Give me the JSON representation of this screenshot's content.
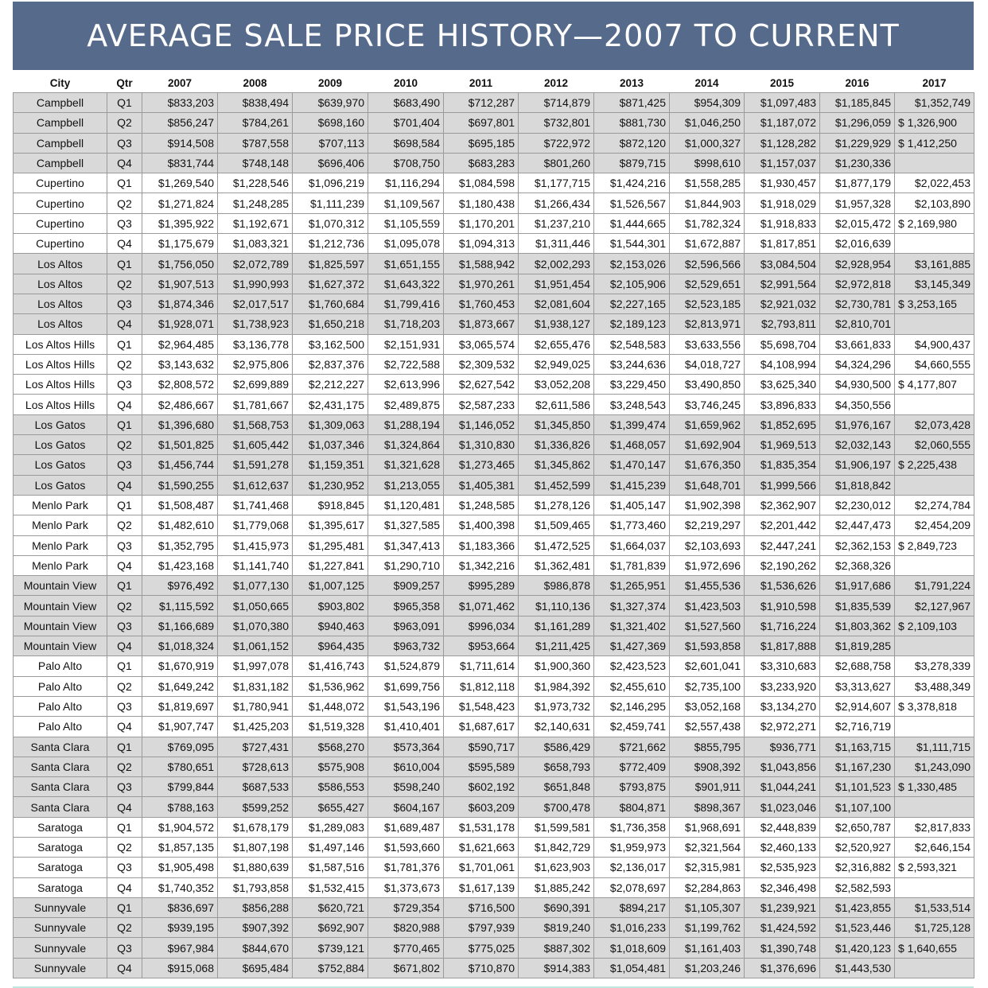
{
  "title": "AVERAGE SALE PRICE HISTORY—2007 TO CURRENT",
  "columns": [
    "City",
    "Qtr",
    "2007",
    "2008",
    "2009",
    "2010",
    "2011",
    "2012",
    "2013",
    "2014",
    "2015",
    "2016",
    "2017"
  ],
  "rows": [
    [
      "Campbell",
      "Q1",
      "$833,203",
      "$838,494",
      "$639,970",
      "$683,490",
      "$712,287",
      "$714,879",
      "$871,425",
      "$954,309",
      "$1,097,483",
      "$1,185,845",
      "$1,352,749"
    ],
    [
      "Campbell",
      "Q2",
      "$856,247",
      "$784,261",
      "$698,160",
      "$701,404",
      "$697,801",
      "$732,801",
      "$881,730",
      "$1,046,250",
      "$1,187,072",
      "$1,296,059",
      "$ 1,326,900"
    ],
    [
      "Campbell",
      "Q3",
      "$914,508",
      "$787,558",
      "$707,113",
      "$698,584",
      "$695,185",
      "$722,972",
      "$872,120",
      "$1,000,327",
      "$1,128,282",
      "$1,229,929",
      "$ 1,412,250"
    ],
    [
      "Campbell",
      "Q4",
      "$831,744",
      "$748,148",
      "$696,406",
      "$708,750",
      "$683,283",
      "$801,260",
      "$879,715",
      "$998,610",
      "$1,157,037",
      "$1,230,336",
      ""
    ],
    [
      "Cupertino",
      "Q1",
      "$1,269,540",
      "$1,228,546",
      "$1,096,219",
      "$1,116,294",
      "$1,084,598",
      "$1,177,715",
      "$1,424,216",
      "$1,558,285",
      "$1,930,457",
      "$1,877,179",
      "$2,022,453"
    ],
    [
      "Cupertino",
      "Q2",
      "$1,271,824",
      "$1,248,285",
      "$1,111,239",
      "$1,109,567",
      "$1,180,438",
      "$1,266,434",
      "$1,526,567",
      "$1,844,903",
      "$1,918,029",
      "$1,957,328",
      "$2,103,890"
    ],
    [
      "Cupertino",
      "Q3",
      "$1,395,922",
      "$1,192,671",
      "$1,070,312",
      "$1,105,559",
      "$1,170,201",
      "$1,237,210",
      "$1,444,665",
      "$1,782,324",
      "$1,918,833",
      "$2,015,472",
      "$ 2,169,980"
    ],
    [
      "Cupertino",
      "Q4",
      "$1,175,679",
      "$1,083,321",
      "$1,212,736",
      "$1,095,078",
      "$1,094,313",
      "$1,311,446",
      "$1,544,301",
      "$1,672,887",
      "$1,817,851",
      "$2,016,639",
      ""
    ],
    [
      "Los Altos",
      "Q1",
      "$1,756,050",
      "$2,072,789",
      "$1,825,597",
      "$1,651,155",
      "$1,588,942",
      "$2,002,293",
      "$2,153,026",
      "$2,596,566",
      "$3,084,504",
      "$2,928,954",
      "$3,161,885"
    ],
    [
      "Los Altos",
      "Q2",
      "$1,907,513",
      "$1,990,993",
      "$1,627,372",
      "$1,643,322",
      "$1,970,261",
      "$1,951,454",
      "$2,105,906",
      "$2,529,651",
      "$2,991,564",
      "$2,972,818",
      "$3,145,349"
    ],
    [
      "Los Altos",
      "Q3",
      "$1,874,346",
      "$2,017,517",
      "$1,760,684",
      "$1,799,416",
      "$1,760,453",
      "$2,081,604",
      "$2,227,165",
      "$2,523,185",
      "$2,921,032",
      "$2,730,781",
      "$ 3,253,165"
    ],
    [
      "Los Altos",
      "Q4",
      "$1,928,071",
      "$1,738,923",
      "$1,650,218",
      "$1,718,203",
      "$1,873,667",
      "$1,938,127",
      "$2,189,123",
      "$2,813,971",
      "$2,793,811",
      "$2,810,701",
      ""
    ],
    [
      "Los Altos Hills",
      "Q1",
      "$2,964,485",
      "$3,136,778",
      "$3,162,500",
      "$2,151,931",
      "$3,065,574",
      "$2,655,476",
      "$2,548,583",
      "$3,633,556",
      "$5,698,704",
      "$3,661,833",
      "$4,900,437"
    ],
    [
      "Los Altos Hills",
      "Q2",
      "$3,143,632",
      "$2,975,806",
      "$2,837,376",
      "$2,722,588",
      "$2,309,532",
      "$2,949,025",
      "$3,244,636",
      "$4,018,727",
      "$4,108,994",
      "$4,324,296",
      "$4,660,555"
    ],
    [
      "Los Altos Hills",
      "Q3",
      "$2,808,572",
      "$2,699,889",
      "$2,212,227",
      "$2,613,996",
      "$2,627,542",
      "$3,052,208",
      "$3,229,450",
      "$3,490,850",
      "$3,625,340",
      "$4,930,500",
      "$ 4,177,807"
    ],
    [
      "Los Altos Hills",
      "Q4",
      "$2,486,667",
      "$1,781,667",
      "$2,431,175",
      "$2,489,875",
      "$2,587,233",
      "$2,611,586",
      "$3,248,543",
      "$3,746,245",
      "$3,896,833",
      "$4,350,556",
      ""
    ],
    [
      "Los Gatos",
      "Q1",
      "$1,396,680",
      "$1,568,753",
      "$1,309,063",
      "$1,288,194",
      "$1,146,052",
      "$1,345,850",
      "$1,399,474",
      "$1,659,962",
      "$1,852,695",
      "$1,976,167",
      "$2,073,428"
    ],
    [
      "Los Gatos",
      "Q2",
      "$1,501,825",
      "$1,605,442",
      "$1,037,346",
      "$1,324,864",
      "$1,310,830",
      "$1,336,826",
      "$1,468,057",
      "$1,692,904",
      "$1,969,513",
      "$2,032,143",
      "$2,060,555"
    ],
    [
      "Los Gatos",
      "Q3",
      "$1,456,744",
      "$1,591,278",
      "$1,159,351",
      "$1,321,628",
      "$1,273,465",
      "$1,345,862",
      "$1,470,147",
      "$1,676,350",
      "$1,835,354",
      "$1,906,197",
      "$ 2,225,438"
    ],
    [
      "Los Gatos",
      "Q4",
      "$1,590,255",
      "$1,612,637",
      "$1,230,952",
      "$1,213,055",
      "$1,405,381",
      "$1,452,599",
      "$1,415,239",
      "$1,648,701",
      "$1,999,566",
      "$1,818,842",
      ""
    ],
    [
      "Menlo Park",
      "Q1",
      "$1,508,487",
      "$1,741,468",
      "$918,845",
      "$1,120,481",
      "$1,248,585",
      "$1,278,126",
      "$1,405,147",
      "$1,902,398",
      "$2,362,907",
      "$2,230,012",
      "$2,274,784"
    ],
    [
      "Menlo Park",
      "Q2",
      "$1,482,610",
      "$1,779,068",
      "$1,395,617",
      "$1,327,585",
      "$1,400,398",
      "$1,509,465",
      "$1,773,460",
      "$2,219,297",
      "$2,201,442",
      "$2,447,473",
      "$2,454,209"
    ],
    [
      "Menlo Park",
      "Q3",
      "$1,352,795",
      "$1,415,973",
      "$1,295,481",
      "$1,347,413",
      "$1,183,366",
      "$1,472,525",
      "$1,664,037",
      "$2,103,693",
      "$2,447,241",
      "$2,362,153",
      "$ 2,849,723"
    ],
    [
      "Menlo Park",
      "Q4",
      "$1,423,168",
      "$1,141,740",
      "$1,227,841",
      "$1,290,710",
      "$1,342,216",
      "$1,362,481",
      "$1,781,839",
      "$1,972,696",
      "$2,190,262",
      "$2,368,326",
      ""
    ],
    [
      "Mountain View",
      "Q1",
      "$976,492",
      "$1,077,130",
      "$1,007,125",
      "$909,257",
      "$995,289",
      "$986,878",
      "$1,265,951",
      "$1,455,536",
      "$1,536,626",
      "$1,917,686",
      "$1,791,224"
    ],
    [
      "Mountain View",
      "Q2",
      "$1,115,592",
      "$1,050,665",
      "$903,802",
      "$965,358",
      "$1,071,462",
      "$1,110,136",
      "$1,327,374",
      "$1,423,503",
      "$1,910,598",
      "$1,835,539",
      "$2,127,967"
    ],
    [
      "Mountain View",
      "Q3",
      "$1,166,689",
      "$1,070,380",
      "$940,463",
      "$963,091",
      "$996,034",
      "$1,161,289",
      "$1,321,402",
      "$1,527,560",
      "$1,716,224",
      "$1,803,362",
      "$ 2,109,103"
    ],
    [
      "Mountain View",
      "Q4",
      "$1,018,324",
      "$1,061,152",
      "$964,435",
      "$963,732",
      "$953,664",
      "$1,211,425",
      "$1,427,369",
      "$1,593,858",
      "$1,817,888",
      "$1,819,285",
      ""
    ],
    [
      "Palo Alto",
      "Q1",
      "$1,670,919",
      "$1,997,078",
      "$1,416,743",
      "$1,524,879",
      "$1,711,614",
      "$1,900,360",
      "$2,423,523",
      "$2,601,041",
      "$3,310,683",
      "$2,688,758",
      "$3,278,339"
    ],
    [
      "Palo Alto",
      "Q2",
      "$1,649,242",
      "$1,831,182",
      "$1,536,962",
      "$1,699,756",
      "$1,812,118",
      "$1,984,392",
      "$2,455,610",
      "$2,735,100",
      "$3,233,920",
      "$3,313,627",
      "$3,488,349"
    ],
    [
      "Palo Alto",
      "Q3",
      "$1,819,697",
      "$1,780,941",
      "$1,448,072",
      "$1,543,196",
      "$1,548,423",
      "$1,973,732",
      "$2,146,295",
      "$3,052,168",
      "$3,134,270",
      "$2,914,607",
      "$ 3,378,818"
    ],
    [
      "Palo Alto",
      "Q4",
      "$1,907,747",
      "$1,425,203",
      "$1,519,328",
      "$1,410,401",
      "$1,687,617",
      "$2,140,631",
      "$2,459,741",
      "$2,557,438",
      "$2,972,271",
      "$2,716,719",
      ""
    ],
    [
      "Santa Clara",
      "Q1",
      "$769,095",
      "$727,431",
      "$568,270",
      "$573,364",
      "$590,717",
      "$586,429",
      "$721,662",
      "$855,795",
      "$936,771",
      "$1,163,715",
      "$1,111,715"
    ],
    [
      "Santa Clara",
      "Q2",
      "$780,651",
      "$728,613",
      "$575,908",
      "$610,004",
      "$595,589",
      "$658,793",
      "$772,409",
      "$908,392",
      "$1,043,856",
      "$1,167,230",
      "$1,243,090"
    ],
    [
      "Santa Clara",
      "Q3",
      "$799,844",
      "$687,533",
      "$586,553",
      "$598,240",
      "$602,192",
      "$651,848",
      "$793,875",
      "$901,911",
      "$1,044,241",
      "$1,101,523",
      "$ 1,330,485"
    ],
    [
      "Santa Clara",
      "Q4",
      "$788,163",
      "$599,252",
      "$655,427",
      "$604,167",
      "$603,209",
      "$700,478",
      "$804,871",
      "$898,367",
      "$1,023,046",
      "$1,107,100",
      ""
    ],
    [
      "Saratoga",
      "Q1",
      "$1,904,572",
      "$1,678,179",
      "$1,289,083",
      "$1,689,487",
      "$1,531,178",
      "$1,599,581",
      "$1,736,358",
      "$1,968,691",
      "$2,448,839",
      "$2,650,787",
      "$2,817,833"
    ],
    [
      "Saratoga",
      "Q2",
      "$1,857,135",
      "$1,807,198",
      "$1,497,146",
      "$1,593,660",
      "$1,621,663",
      "$1,842,729",
      "$1,959,973",
      "$2,321,564",
      "$2,460,133",
      "$2,520,927",
      "$2,646,154"
    ],
    [
      "Saratoga",
      "Q3",
      "$1,905,498",
      "$1,880,639",
      "$1,587,516",
      "$1,781,376",
      "$1,701,061",
      "$1,623,903",
      "$2,136,017",
      "$2,315,981",
      "$2,535,923",
      "$2,316,882",
      "$ 2,593,321"
    ],
    [
      "Saratoga",
      "Q4",
      "$1,740,352",
      "$1,793,858",
      "$1,532,415",
      "$1,373,673",
      "$1,617,139",
      "$1,885,242",
      "$2,078,697",
      "$2,284,863",
      "$2,346,498",
      "$2,582,593",
      ""
    ],
    [
      "Sunnyvale",
      "Q1",
      "$836,697",
      "$856,288",
      "$620,721",
      "$729,354",
      "$716,500",
      "$690,391",
      "$894,217",
      "$1,105,307",
      "$1,239,921",
      "$1,423,855",
      "$1,533,514"
    ],
    [
      "Sunnyvale",
      "Q2",
      "$939,195",
      "$907,392",
      "$692,907",
      "$820,988",
      "$797,939",
      "$819,240",
      "$1,016,233",
      "$1,199,762",
      "$1,424,592",
      "$1,523,446",
      "$1,725,128"
    ],
    [
      "Sunnyvale",
      "Q3",
      "$967,984",
      "$844,670",
      "$739,121",
      "$770,465",
      "$775,025",
      "$887,302",
      "$1,018,609",
      "$1,161,403",
      "$1,390,748",
      "$1,420,123",
      "$ 1,640,655"
    ],
    [
      "Sunnyvale",
      "Q4",
      "$915,068",
      "$695,484",
      "$752,884",
      "$671,802",
      "$710,870",
      "$914,383",
      "$1,054,481",
      "$1,203,246",
      "$1,376,696",
      "$1,443,530",
      ""
    ]
  ]
}
